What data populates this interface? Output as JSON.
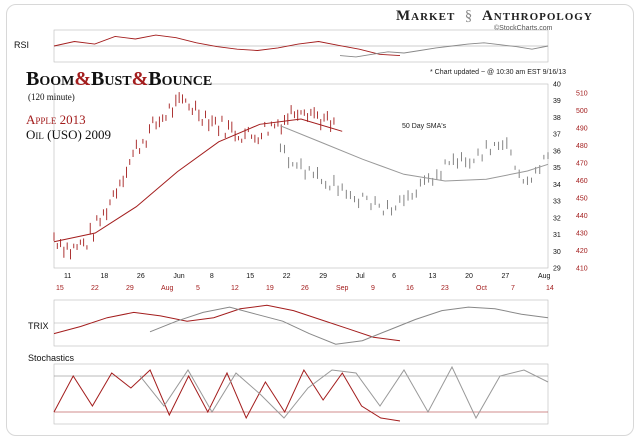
{
  "header": {
    "brand_left": "Market",
    "brand_right": "Anthropology",
    "credit": "©StockCharts.com",
    "updated": "* Chart updated ~ @ 10:30 am EST  9/16/13"
  },
  "title": {
    "boom": "Boom",
    "amp1": "&",
    "bust": "Bust",
    "amp2": "&",
    "bounce": "Bounce",
    "subtitle": "(120 minute)",
    "series_apple": "Apple 2013",
    "series_oil": "Oil (USO) 2009"
  },
  "panels": {
    "rsi_label": "RSI",
    "trix_label": "TRIX",
    "stoch_label": "Stochastics"
  },
  "colors": {
    "apple": "#a31d1d",
    "oil": "#8c8c8c",
    "axis_right": "#a31d1d",
    "rsi_fill_pos": "#c98a8a",
    "rsi_fill_neg": "#9a9a9a"
  },
  "chart_data": {
    "type": "line",
    "annotations": [
      "50 Day SMA's"
    ],
    "top_x_ticks": [
      "11",
      "18",
      "26",
      "Jun",
      "8",
      "15",
      "22",
      "29",
      "Jul",
      "6",
      "13",
      "20",
      "27",
      "Aug"
    ],
    "bottom_x_ticks": [
      "15",
      "22",
      "29",
      "Aug",
      "5",
      "12",
      "19",
      "26",
      "Sep",
      "9",
      "16",
      "23",
      "Oct",
      "7",
      "14"
    ],
    "y_axis_oil": [
      29,
      30,
      31,
      32,
      33,
      34,
      35,
      36,
      37,
      38,
      39,
      40
    ],
    "y_axis_apple": [
      410,
      420,
      430,
      440,
      450,
      460,
      470,
      480,
      490,
      500,
      510
    ],
    "ylim_oil": [
      29,
      40
    ],
    "ylim_apple": [
      410,
      515
    ],
    "series": [
      {
        "name": "Apple 2013",
        "x": [
          0,
          4,
          8,
          12,
          16,
          20,
          24,
          28,
          32,
          36,
          40,
          44,
          48,
          52,
          56,
          60,
          64,
          68
        ],
        "values": [
          428,
          420,
          425,
          440,
          460,
          478,
          490,
          500,
          505,
          498,
          492,
          488,
          485,
          490,
          495,
          503,
          497,
          490
        ]
      },
      {
        "name": "Oil (USO) 2009",
        "x": [
          55,
          60,
          65,
          70,
          75,
          80,
          85,
          90,
          95,
          100,
          105,
          110,
          115,
          120
        ],
        "values": [
          36,
          35,
          34.5,
          33.5,
          33,
          32.5,
          33,
          34,
          35,
          35.5,
          36,
          36.2,
          34,
          36
        ]
      },
      {
        "name": "Apple 50 Day SMA",
        "x": [
          0,
          10,
          20,
          30,
          40,
          50,
          60,
          70
        ],
        "values": [
          425,
          430,
          445,
          465,
          482,
          492,
          495,
          488
        ]
      },
      {
        "name": "Oil 50 Day SMA",
        "x": [
          55,
          65,
          75,
          85,
          95,
          105,
          115,
          120
        ],
        "values": [
          37.5,
          36.5,
          35.5,
          34.6,
          34.2,
          34.3,
          34.8,
          35.2
        ]
      }
    ],
    "rsi": {
      "apple": [
        55,
        62,
        58,
        70,
        66,
        72,
        68,
        60,
        54,
        50,
        48,
        52,
        58,
        62,
        56,
        50,
        42,
        40
      ],
      "oil": [
        40,
        38,
        42,
        46,
        44,
        48,
        52,
        55,
        58,
        60,
        57,
        54,
        50,
        55
      ]
    },
    "trix": {
      "apple": [
        -0.6,
        -0.2,
        0.3,
        0.6,
        0.4,
        0.1,
        0.3,
        0.8,
        1.0,
        0.7,
        0.2,
        -0.3,
        -0.8,
        -1.0
      ],
      "oil": [
        -0.5,
        0.1,
        0.6,
        0.9,
        0.5,
        0.1,
        -0.6,
        -1.2,
        -1.0,
        -0.4,
        0.2,
        0.7,
        0.9,
        0.8,
        0.5,
        0.3
      ]
    },
    "stochastics": {
      "apple": [
        20,
        80,
        30,
        85,
        60,
        90,
        15,
        80,
        20,
        85,
        10,
        70,
        20,
        90,
        40,
        85,
        30,
        10,
        5
      ],
      "oil": [
        80,
        30,
        90,
        20,
        85,
        50,
        10,
        60,
        90,
        85,
        30,
        90,
        20,
        95,
        10,
        80,
        90,
        70
      ]
    }
  }
}
